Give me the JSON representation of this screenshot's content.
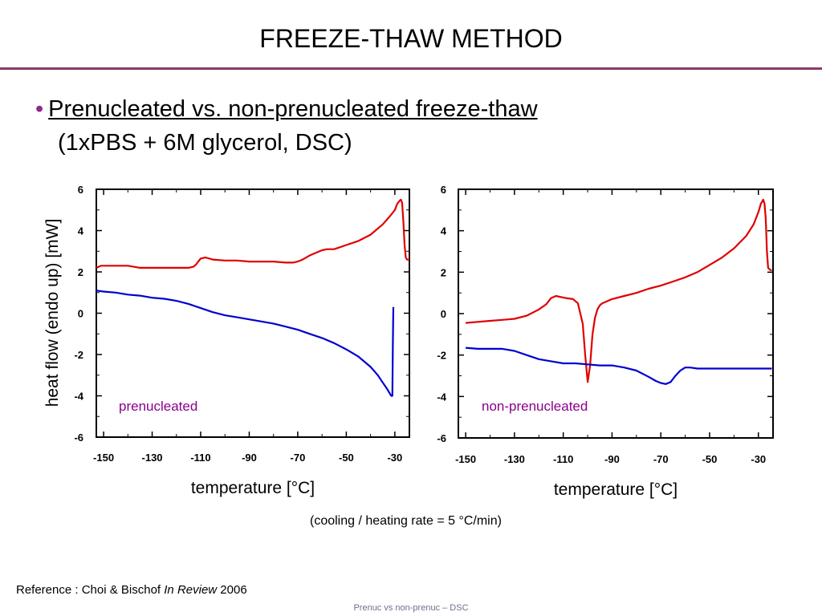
{
  "slide": {
    "title": "FREEZE-THAW METHOD",
    "bullet": "Prenucleated vs. non-prenucleated freeze-thaw",
    "bullet_sub": "(1xPBS + 6M glycerol, DSC)",
    "rate_note": "(cooling / heating rate = 5 °C/min)",
    "reference_prefix": "Reference : Choi & Bischof ",
    "reference_journal": "In Review",
    "reference_year": " 2006",
    "footer": "Prenuc vs non-prenuc – DSC"
  },
  "colors": {
    "heating": "#e00000",
    "cooling": "#0000d0",
    "label": "#8a008a",
    "accent": "#8a3a6a"
  },
  "chart_data": [
    {
      "type": "line",
      "title": "",
      "annotation": "prenucleated",
      "xlabel": "temperature [°C]",
      "ylabel": "heat flow (endo up) [mW]",
      "xlim": [
        -153,
        -24
      ],
      "ylim": [
        -6,
        6
      ],
      "xticks": [
        -150,
        -130,
        -110,
        -90,
        -70,
        -50,
        -30
      ],
      "yticks": [
        6,
        4,
        2,
        0,
        -2,
        -4,
        -6
      ],
      "series": [
        {
          "color": "#e00000",
          "x": [
            -153,
            -151,
            -145,
            -140,
            -135,
            -130,
            -125,
            -120,
            -117,
            -115,
            -113,
            -112,
            -111,
            -110,
            -108,
            -105,
            -100,
            -95,
            -90,
            -85,
            -80,
            -75,
            -72,
            -70,
            -68,
            -65,
            -62,
            -60,
            -58,
            -55,
            -50,
            -45,
            -40,
            -35,
            -32,
            -30,
            -29,
            -28,
            -27.5,
            -27,
            -26.5,
            -26,
            -25.5,
            -25,
            -24
          ],
          "y": [
            2.2,
            2.3,
            2.3,
            2.3,
            2.2,
            2.2,
            2.2,
            2.2,
            2.2,
            2.2,
            2.25,
            2.35,
            2.5,
            2.65,
            2.7,
            2.6,
            2.55,
            2.55,
            2.5,
            2.5,
            2.5,
            2.45,
            2.45,
            2.5,
            2.6,
            2.8,
            2.95,
            3.05,
            3.1,
            3.1,
            3.3,
            3.5,
            3.8,
            4.3,
            4.7,
            5.0,
            5.3,
            5.45,
            5.5,
            5.35,
            4.5,
            3.3,
            2.7,
            2.6,
            2.6
          ]
        },
        {
          "color": "#0000d0",
          "x": [
            -153,
            -150,
            -145,
            -140,
            -135,
            -130,
            -125,
            -120,
            -115,
            -110,
            -105,
            -100,
            -95,
            -90,
            -85,
            -80,
            -75,
            -70,
            -65,
            -60,
            -55,
            -50,
            -45,
            -40,
            -37,
            -35,
            -33,
            -32,
            -31.5,
            -31,
            -30.8,
            -30.6
          ],
          "y": [
            1.1,
            1.05,
            1.0,
            0.9,
            0.85,
            0.75,
            0.7,
            0.6,
            0.45,
            0.25,
            0.05,
            -0.1,
            -0.2,
            -0.3,
            -0.4,
            -0.5,
            -0.65,
            -0.8,
            -1.0,
            -1.2,
            -1.45,
            -1.75,
            -2.1,
            -2.6,
            -3.0,
            -3.35,
            -3.7,
            -3.9,
            -4.0,
            -4.0,
            -1.5,
            0.3
          ]
        }
      ]
    },
    {
      "type": "line",
      "title": "",
      "annotation": "non-prenucleated",
      "xlabel": "temperature [°C]",
      "ylabel": "",
      "xlim": [
        -153,
        -24
      ],
      "ylim": [
        -6,
        6
      ],
      "xticks": [
        -150,
        -130,
        -110,
        -90,
        -70,
        -50,
        -30
      ],
      "yticks": [
        6,
        4,
        2,
        0,
        -2,
        -4,
        -6
      ],
      "series": [
        {
          "color": "#e00000",
          "x": [
            -150,
            -145,
            -140,
            -135,
            -130,
            -125,
            -120,
            -117,
            -115,
            -113,
            -111,
            -109,
            -106,
            -104,
            -102,
            -101,
            -100,
            -99,
            -98,
            -97,
            -96,
            -95,
            -94,
            -92,
            -90,
            -85,
            -80,
            -75,
            -70,
            -65,
            -60,
            -55,
            -50,
            -45,
            -40,
            -35,
            -32,
            -30,
            -29,
            -28,
            -27.5,
            -27,
            -26.5,
            -26,
            -25,
            -24.5
          ],
          "y": [
            -0.45,
            -0.4,
            -0.35,
            -0.3,
            -0.25,
            -0.1,
            0.2,
            0.45,
            0.75,
            0.85,
            0.8,
            0.75,
            0.7,
            0.5,
            -0.5,
            -2.0,
            -3.3,
            -2.5,
            -1.0,
            -0.2,
            0.2,
            0.4,
            0.5,
            0.6,
            0.7,
            0.85,
            1.0,
            1.2,
            1.35,
            1.55,
            1.75,
            2.0,
            2.35,
            2.7,
            3.15,
            3.75,
            4.3,
            4.9,
            5.3,
            5.5,
            5.3,
            4.6,
            3.0,
            2.2,
            2.1,
            2.1
          ]
        },
        {
          "color": "#0000d0",
          "x": [
            -150,
            -145,
            -140,
            -135,
            -130,
            -125,
            -120,
            -115,
            -110,
            -105,
            -100,
            -95,
            -90,
            -85,
            -80,
            -75,
            -72,
            -70,
            -68,
            -66,
            -64,
            -62,
            -60,
            -58,
            -55,
            -50,
            -40,
            -30,
            -24.5
          ],
          "y": [
            -1.65,
            -1.7,
            -1.7,
            -1.7,
            -1.8,
            -2.0,
            -2.2,
            -2.3,
            -2.4,
            -2.4,
            -2.45,
            -2.5,
            -2.5,
            -2.6,
            -2.75,
            -3.05,
            -3.25,
            -3.35,
            -3.4,
            -3.3,
            -3.0,
            -2.75,
            -2.6,
            -2.6,
            -2.65,
            -2.65,
            -2.65,
            -2.65,
            -2.65
          ]
        }
      ]
    }
  ]
}
